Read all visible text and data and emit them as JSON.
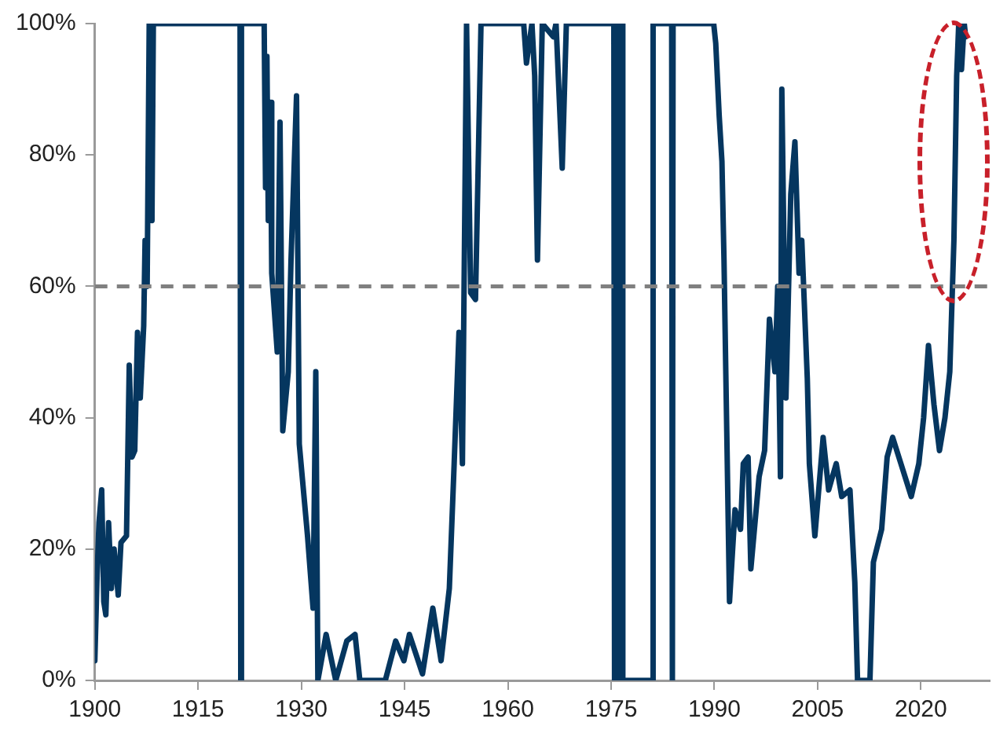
{
  "chart_data": {
    "type": "line",
    "x": [
      1900,
      1900.3,
      1900.6,
      1901,
      1901.3,
      1901.6,
      1902,
      1902.4,
      1902.8,
      1903.4,
      1903.8,
      1904.6,
      1905,
      1905.4,
      1905.8,
      1906.2,
      1906.6,
      1907.1,
      1907.3,
      1907.6,
      1907.9,
      1908.3,
      1908.5,
      1921.1,
      1921.2,
      1921.3,
      1924.6,
      1924.8,
      1925,
      1925.2,
      1925.5,
      1925.7,
      1926.5,
      1926.9,
      1927.3,
      1928.1,
      1928.5,
      1929.3,
      1929.7,
      1930.9,
      1931.7,
      1932.1,
      1932.4,
      1933.6,
      1935,
      1936.6,
      1937.8,
      1938.5,
      1942.2,
      1943.7,
      1944.9,
      1945.7,
      1947.6,
      1949.1,
      1950.3,
      1951.5,
      1952.2,
      1952.9,
      1953.4,
      1954,
      1954.6,
      1955.3,
      1956.1,
      1962.3,
      1962.7,
      1963.5,
      1963.9,
      1964.3,
      1965,
      1966.6,
      1967,
      1967.9,
      1968.5,
      1975.4,
      1975.5,
      1975.7,
      1975.9,
      1976.2,
      1976.4,
      1976.6,
      1976.7,
      1978.6,
      1981,
      1981.1,
      1983.8,
      1983.9,
      1984,
      1989.9,
      1990.2,
      1990.7,
      1991.1,
      1991.4,
      1991.8,
      1992.2,
      1993,
      1993.8,
      1994.2,
      1994.9,
      1995.3,
      1996.5,
      1997.3,
      1998,
      1998.8,
      1999.2,
      1999.6,
      1999.8,
      2000.4,
      2001.1,
      2001.7,
      2002.3,
      2002.7,
      2003.5,
      2003.8,
      2004.6,
      2005.8,
      2006.6,
      2007.7,
      2008.5,
      2009.7,
      2010.4,
      2010.8,
      2012.6,
      2013.1,
      2014.3,
      2015.1,
      2015.9,
      2017.4,
      2018.6,
      2019.7,
      2020.4,
      2021.1,
      2021.9,
      2022.7,
      2023.5,
      2024.2,
      2024.8,
      2025.2,
      2025.5,
      2025.9,
      2026.3,
      2026.5
    ],
    "series": [
      {
        "color": "#05365f",
        "values": [
          3,
          15,
          24,
          29,
          12,
          10,
          24,
          14,
          20,
          13,
          21,
          22,
          48,
          34,
          35,
          53,
          43,
          54,
          67,
          60,
          100,
          70,
          100,
          100,
          0,
          100,
          100,
          75,
          95,
          70,
          88,
          62,
          50,
          85,
          38,
          47,
          64,
          89,
          36,
          22,
          11,
          47,
          0,
          7,
          0,
          6,
          7,
          0,
          0,
          6,
          3,
          7,
          1,
          11,
          3,
          14,
          33,
          53,
          33,
          100,
          59,
          58,
          100,
          100,
          94,
          100,
          92,
          64,
          100,
          98,
          100,
          78,
          100,
          100,
          0,
          100,
          0,
          100,
          0,
          100,
          0,
          0,
          0,
          100,
          100,
          0,
          100,
          100,
          97,
          86,
          79,
          64,
          38,
          12,
          26,
          23,
          33,
          34,
          17,
          31,
          35,
          55,
          47,
          60,
          31,
          90,
          43,
          74,
          82,
          62,
          67,
          46,
          33,
          22,
          37,
          29,
          33,
          28,
          29,
          15,
          0,
          0,
          18,
          23,
          34,
          37,
          32,
          28,
          33,
          40,
          51,
          42,
          35,
          40,
          47,
          67,
          92,
          100,
          93,
          100,
          98
        ]
      }
    ],
    "xlim": [
      1900,
      2030
    ],
    "xticks": [
      1900,
      1915,
      1930,
      1945,
      1960,
      1975,
      1990,
      2005,
      2020
    ],
    "ylim": [
      0,
      100
    ],
    "yticks": [
      {
        "value": 0,
        "label": "0%"
      },
      {
        "value": 20,
        "label": "20%"
      },
      {
        "value": 40,
        "label": "40%"
      },
      {
        "value": 60,
        "label": "60%"
      },
      {
        "value": 80,
        "label": "80%"
      },
      {
        "value": 100,
        "label": "100%"
      }
    ],
    "ref_lines": [
      {
        "axis": "y",
        "value": 60,
        "color": "#808080",
        "line_style": "dashed"
      }
    ],
    "grid": false,
    "legend": false,
    "marker": "none",
    "line_style": "solid"
  }
}
